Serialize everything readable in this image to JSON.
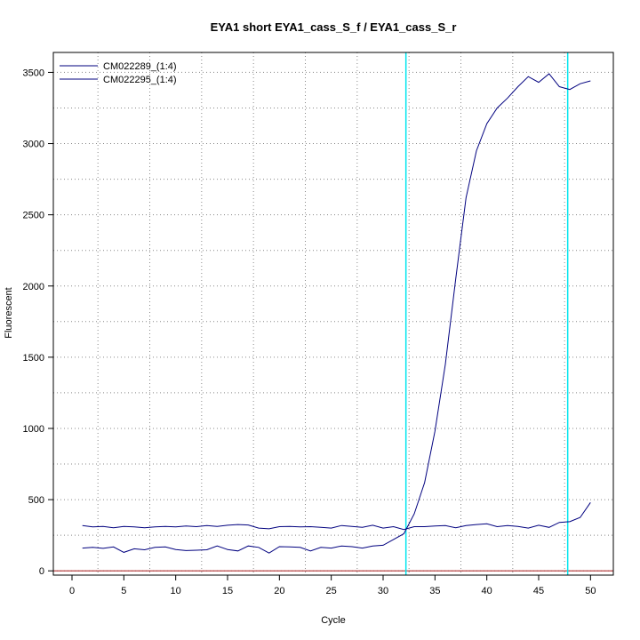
{
  "chart_data": {
    "type": "line",
    "title": "EYA1 short EYA1_cass_S_f / EYA1_cass_S_r",
    "xlabel": "Cycle",
    "ylabel": "Fluorescent",
    "xlim": [
      -1.8,
      52.2
    ],
    "ylim": [
      -30,
      3640
    ],
    "xticks": [
      0,
      5,
      10,
      15,
      20,
      25,
      30,
      35,
      40,
      45,
      50
    ],
    "yticks": [
      0,
      500,
      1000,
      1500,
      2000,
      2500,
      3000,
      3500
    ],
    "grid": true,
    "legend_position": "top-left",
    "baseline": 0,
    "threshold_lines": [
      32.2,
      47.8
    ],
    "colors": {
      "series": "#00007f",
      "threshold": "#00e5ee",
      "grid": "#888888",
      "baseline": "#b03030"
    },
    "series": [
      {
        "name": "CM022289_(1:4)",
        "x": [
          1,
          2,
          3,
          4,
          5,
          6,
          7,
          8,
          9,
          10,
          11,
          12,
          13,
          14,
          15,
          16,
          17,
          18,
          19,
          20,
          21,
          22,
          23,
          24,
          25,
          26,
          27,
          28,
          29,
          30,
          31,
          32,
          33,
          34,
          35,
          36,
          37,
          38,
          39,
          40,
          41,
          42,
          43,
          44,
          45,
          46,
          47,
          48,
          49,
          50
        ],
        "values": [
          160,
          165,
          158,
          168,
          130,
          155,
          148,
          165,
          168,
          150,
          142,
          145,
          148,
          175,
          150,
          140,
          175,
          165,
          125,
          170,
          168,
          165,
          140,
          165,
          160,
          175,
          170,
          160,
          175,
          180,
          220,
          260,
          400,
          620,
          980,
          1450,
          2050,
          2620,
          2950,
          3140,
          3250,
          3320,
          3400,
          3470,
          3430,
          3490,
          3400,
          3380,
          3420,
          3440
        ]
      },
      {
        "name": "CM022295_(1:4)",
        "x": [
          1,
          2,
          3,
          4,
          5,
          6,
          7,
          8,
          9,
          10,
          11,
          12,
          13,
          14,
          15,
          16,
          17,
          18,
          19,
          20,
          21,
          22,
          23,
          24,
          25,
          26,
          27,
          28,
          29,
          30,
          31,
          32,
          33,
          34,
          35,
          36,
          37,
          38,
          39,
          40,
          41,
          42,
          43,
          44,
          45,
          46,
          47,
          48,
          49,
          50
        ],
        "values": [
          318,
          308,
          312,
          302,
          312,
          308,
          302,
          308,
          312,
          308,
          315,
          310,
          318,
          312,
          320,
          325,
          322,
          300,
          295,
          310,
          312,
          308,
          310,
          305,
          300,
          318,
          312,
          305,
          320,
          300,
          310,
          290,
          310,
          310,
          315,
          318,
          302,
          318,
          325,
          330,
          310,
          318,
          312,
          300,
          320,
          305,
          340,
          345,
          375,
          480
        ]
      }
    ]
  }
}
